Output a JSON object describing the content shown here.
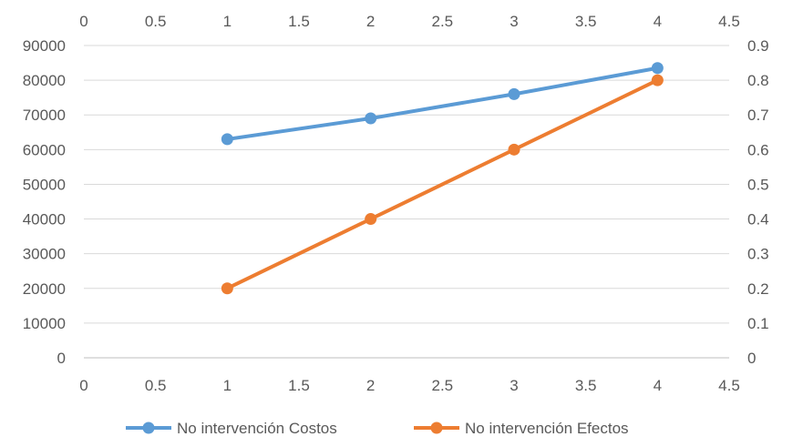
{
  "chart_data": {
    "type": "line",
    "title": "",
    "grid": true,
    "legend_position": "bottom",
    "x_axis": {
      "range": [
        0,
        4.5
      ],
      "ticks": [
        "0",
        "0.5",
        "1",
        "1.5",
        "2",
        "2.5",
        "3",
        "3.5",
        "4",
        "4.5"
      ],
      "shown_top_and_bottom": true
    },
    "y_left": {
      "range": [
        0,
        90000
      ],
      "ticks": [
        "0",
        "10000",
        "20000",
        "30000",
        "40000",
        "50000",
        "60000",
        "70000",
        "80000",
        "90000"
      ]
    },
    "y_right": {
      "range": [
        0,
        0.9
      ],
      "ticks": [
        "0",
        "0.1",
        "0.2",
        "0.3",
        "0.4",
        "0.5",
        "0.6",
        "0.7",
        "0.8",
        "0.9"
      ]
    },
    "series": [
      {
        "name": "No intervención Costos",
        "axis": "left",
        "color": "#5B9BD5",
        "x": [
          1,
          2,
          3,
          4
        ],
        "y": [
          63000,
          69000,
          76000,
          83500
        ]
      },
      {
        "name": "No intervención Efectos",
        "axis": "right",
        "color": "#ED7D31",
        "x": [
          1,
          2,
          3,
          4
        ],
        "y": [
          0.2,
          0.4,
          0.6,
          0.8
        ]
      }
    ]
  }
}
